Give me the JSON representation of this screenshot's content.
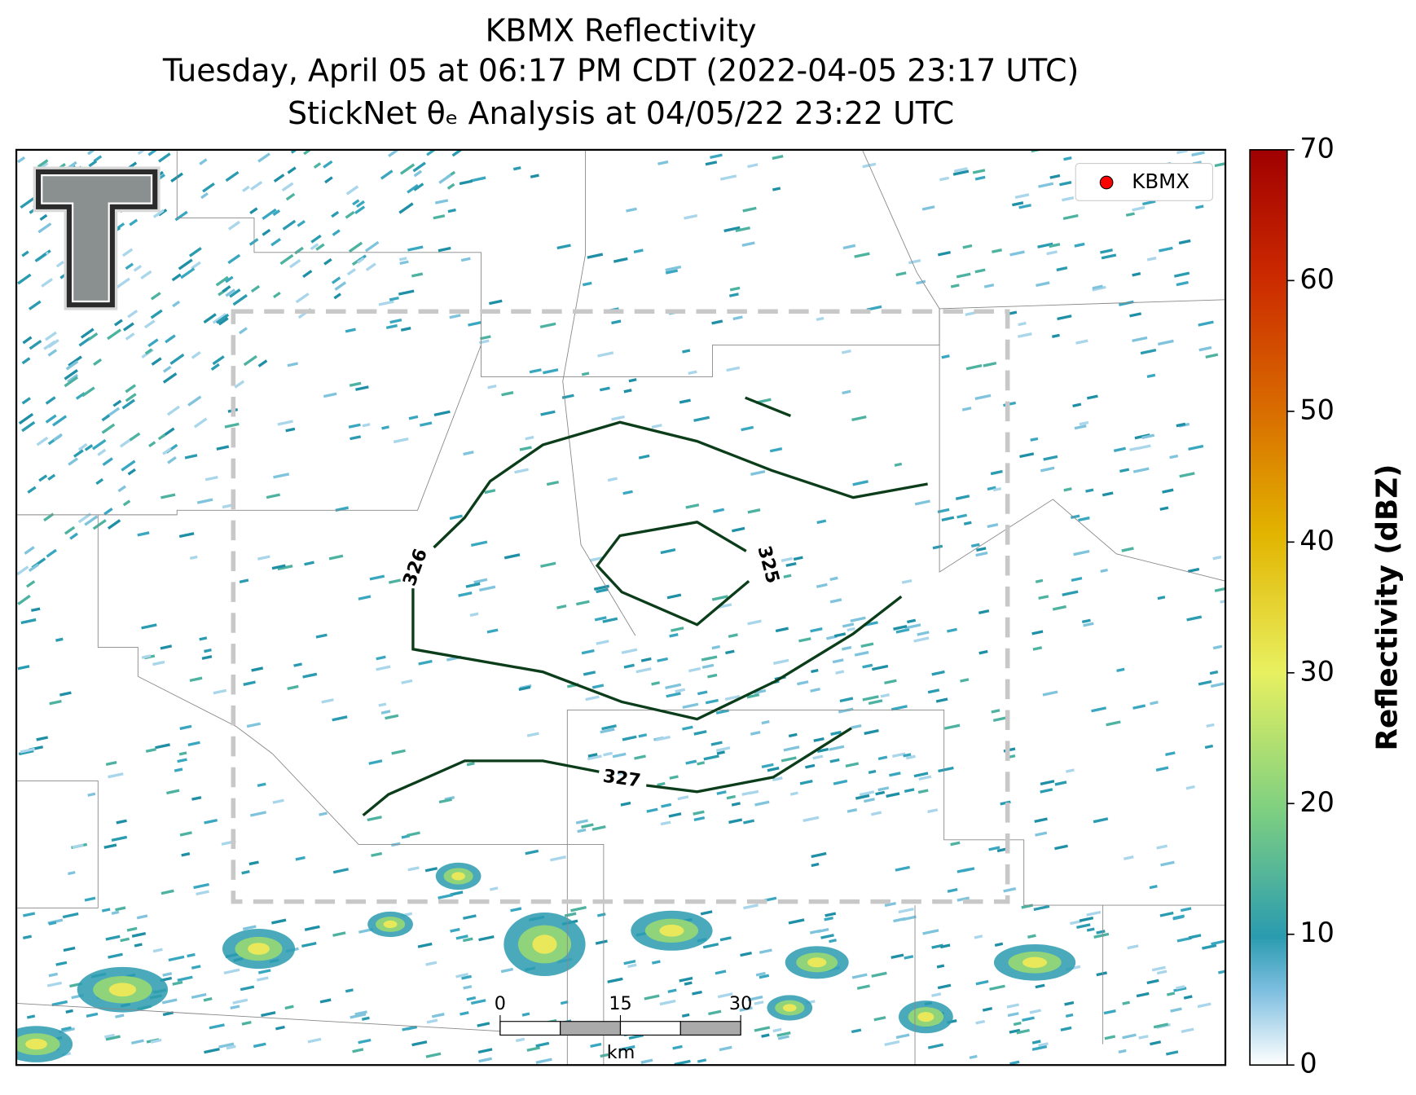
{
  "title_lines": [
    "KBMX Reflectivity",
    "Tuesday, April 05 at 06:17 PM CDT (2022-04-05 23:17 UTC)",
    "StickNet θₑ Analysis at 04/05/22 23:22 UTC"
  ],
  "legend": {
    "label": "KBMX",
    "color": "#ff0000"
  },
  "contours": [
    {
      "label": "326"
    },
    {
      "label": "325"
    },
    {
      "label": "327"
    }
  ],
  "scalebar": {
    "ticks": [
      0,
      15,
      30
    ],
    "unit": "km"
  },
  "colorbar": {
    "label": "Reflectivity (dBZ)",
    "lim": [
      0,
      70
    ],
    "ticks": [
      0,
      10,
      20,
      30,
      40,
      50,
      60,
      70
    ]
  }
}
